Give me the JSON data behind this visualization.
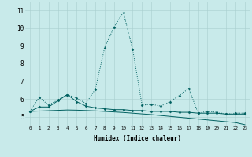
{
  "x": [
    0,
    1,
    2,
    3,
    4,
    5,
    6,
    7,
    8,
    9,
    10,
    11,
    12,
    13,
    14,
    15,
    16,
    17,
    18,
    19,
    20,
    21,
    22,
    23
  ],
  "line1": [
    5.3,
    6.1,
    5.65,
    5.95,
    6.25,
    6.05,
    5.75,
    6.55,
    8.9,
    10.05,
    10.9,
    8.8,
    5.65,
    5.7,
    5.6,
    5.85,
    6.2,
    6.6,
    5.2,
    5.3,
    5.25,
    5.15,
    5.2,
    5.2
  ],
  "line2": [
    5.3,
    5.55,
    5.55,
    5.9,
    6.25,
    5.85,
    5.6,
    5.5,
    5.45,
    5.4,
    5.4,
    5.35,
    5.35,
    5.3,
    5.3,
    5.3,
    5.25,
    5.25,
    5.2,
    5.2,
    5.2,
    5.15,
    5.15,
    5.15
  ],
  "line3": [
    5.3,
    5.32,
    5.34,
    5.36,
    5.38,
    5.37,
    5.35,
    5.33,
    5.3,
    5.27,
    5.24,
    5.2,
    5.16,
    5.12,
    5.07,
    5.02,
    4.97,
    4.92,
    4.87,
    4.82,
    4.77,
    4.72,
    4.67,
    4.55
  ],
  "bg_color": "#c8eaea",
  "line_color": "#006060",
  "grid_color": "#a8cece",
  "xlabel": "Humidex (Indice chaleur)",
  "ylim": [
    4.5,
    11.5
  ],
  "xlim": [
    -0.5,
    23.5
  ],
  "yticks": [
    5,
    6,
    7,
    8,
    9,
    10,
    11
  ]
}
